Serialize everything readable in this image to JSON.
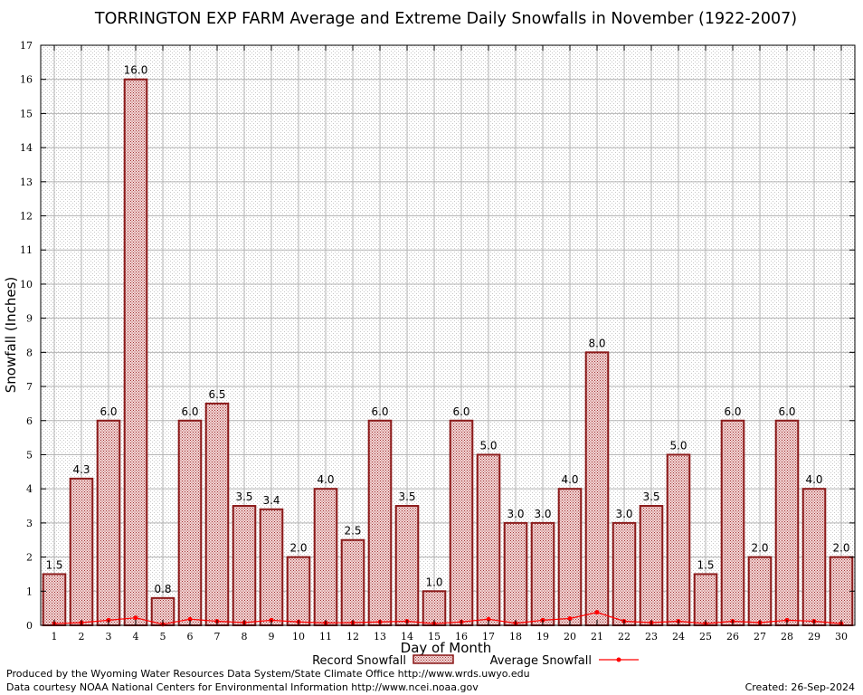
{
  "chart_data": {
    "type": "bar",
    "title": "TORRINGTON EXP FARM Average and Extreme Daily Snowfalls in November (1922-2007)",
    "xlabel": "Day of Month",
    "ylabel": "Snowfall (Inches)",
    "ylim": [
      0,
      17
    ],
    "yticks": [
      0,
      1,
      2,
      3,
      4,
      5,
      6,
      7,
      8,
      9,
      10,
      11,
      12,
      13,
      14,
      15,
      16,
      17
    ],
    "grid": true,
    "legend_position": "bottom-center",
    "categories": [
      "1",
      "2",
      "3",
      "4",
      "5",
      "6",
      "7",
      "8",
      "9",
      "10",
      "11",
      "12",
      "13",
      "14",
      "15",
      "16",
      "17",
      "18",
      "19",
      "20",
      "21",
      "22",
      "23",
      "24",
      "25",
      "26",
      "27",
      "28",
      "29",
      "30"
    ],
    "series": [
      {
        "name": "Record Snowfall",
        "kind": "bar",
        "color": "#8b1a1a",
        "values": [
          1.5,
          4.3,
          6.0,
          16.0,
          0.8,
          6.0,
          6.5,
          3.5,
          3.4,
          2.0,
          4.0,
          2.5,
          6.0,
          3.5,
          1.0,
          6.0,
          5.0,
          3.0,
          3.0,
          4.0,
          8.0,
          3.0,
          3.5,
          5.0,
          1.5,
          6.0,
          2.0,
          6.0,
          4.0,
          2.0
        ],
        "labels": [
          "1.5",
          "4.3",
          "6.0",
          "16.0",
          "0.8",
          "6.0",
          "6.5",
          "3.5",
          "3.4",
          "2.0",
          "4.0",
          "2.5",
          "6.0",
          "3.5",
          "1.0",
          "6.0",
          "5.0",
          "3.0",
          "3.0",
          "4.0",
          "8.0",
          "3.0",
          "3.5",
          "5.0",
          "1.5",
          "6.0",
          "2.0",
          "6.0",
          "4.0",
          "2.0"
        ]
      },
      {
        "name": "Average Snowfall",
        "kind": "line",
        "color": "#ff0000",
        "values": [
          0.05,
          0.08,
          0.15,
          0.22,
          0.03,
          0.18,
          0.12,
          0.08,
          0.15,
          0.1,
          0.07,
          0.08,
          0.1,
          0.12,
          0.05,
          0.1,
          0.18,
          0.06,
          0.15,
          0.2,
          0.38,
          0.12,
          0.08,
          0.12,
          0.05,
          0.12,
          0.08,
          0.15,
          0.12,
          0.05
        ]
      }
    ]
  },
  "footer": {
    "line1": "Produced by the Wyoming Water Resources Data System/State Climate Office http://www.wrds.uwyo.edu",
    "line2": "Data courtesy NOAA National Centers for Environmental Information http://www.ncei.noaa.gov",
    "created": "Created:  26-Sep-2024"
  }
}
